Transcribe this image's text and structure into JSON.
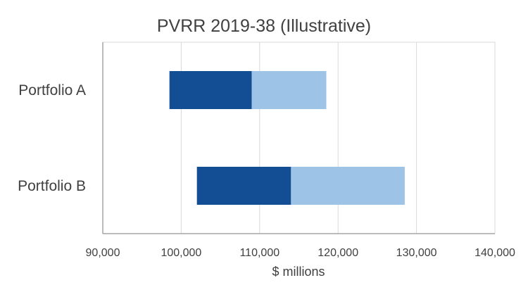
{
  "chart_data": {
    "type": "bar",
    "orientation": "horizontal",
    "stacked": true,
    "title": "PVRR 2019-38 (Illustrative)",
    "xlabel": "$ millions",
    "ylabel": "",
    "xlim": [
      90000,
      140000
    ],
    "xticks": [
      90000,
      100000,
      110000,
      120000,
      130000,
      140000
    ],
    "xtick_labels": [
      "90,000",
      "100,000",
      "110,000",
      "120,000",
      "130,000",
      "140,000"
    ],
    "grid": true,
    "legend": "none",
    "categories": [
      "Portfolio A",
      "Portfolio B"
    ],
    "bars": [
      {
        "category": "Portfolio A",
        "low": 98500,
        "mid": 109000,
        "high": 118500
      },
      {
        "category": "Portfolio B",
        "low": 102000,
        "mid": 114000,
        "high": 128500
      }
    ],
    "colors": {
      "dark": "#134E95",
      "light": "#9DC3E6",
      "grid": "#D9D9D9",
      "axis": "#A6A6A6"
    }
  }
}
